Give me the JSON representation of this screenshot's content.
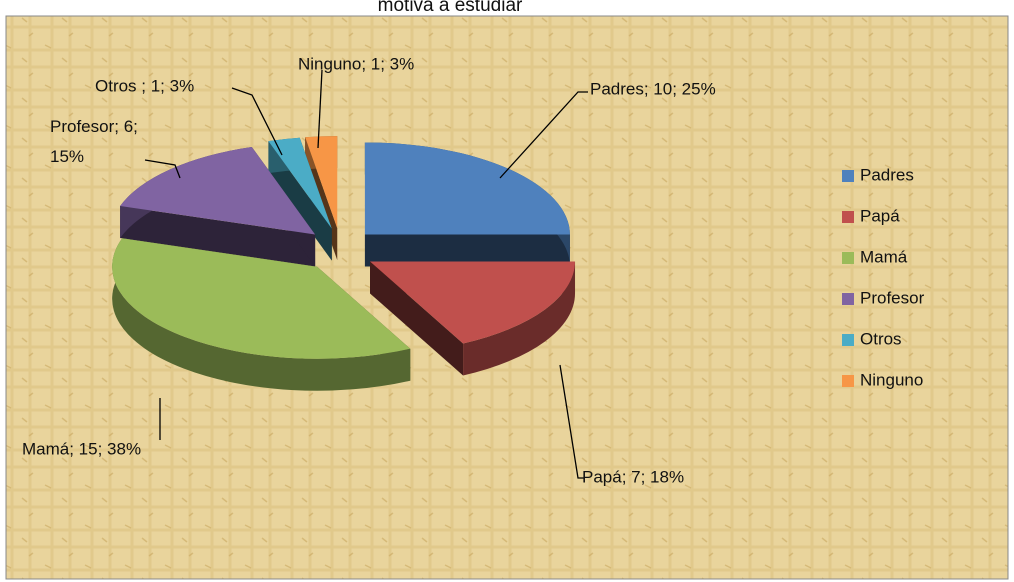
{
  "chart_data": {
    "type": "pie",
    "title": "motiva a estudiar",
    "categories": [
      "Padres",
      "Papá",
      "Mamá",
      "Profesor",
      "Otros",
      "Ninguno"
    ],
    "values": [
      10,
      7,
      15,
      6,
      1,
      1
    ],
    "value_labels": [
      "Padres; 10; 25%",
      "Papá; 7; 18%",
      "Mamá; 15;  38%",
      "Profesor; 6;\n15%",
      "Otros ; 1; 3%",
      "Ninguno; 1; 3%"
    ],
    "colors": [
      "#4f81bd",
      "#c0504d",
      "#9bbb59",
      "#8064a2",
      "#4bacc6",
      "#f79646"
    ],
    "legend": "right"
  }
}
